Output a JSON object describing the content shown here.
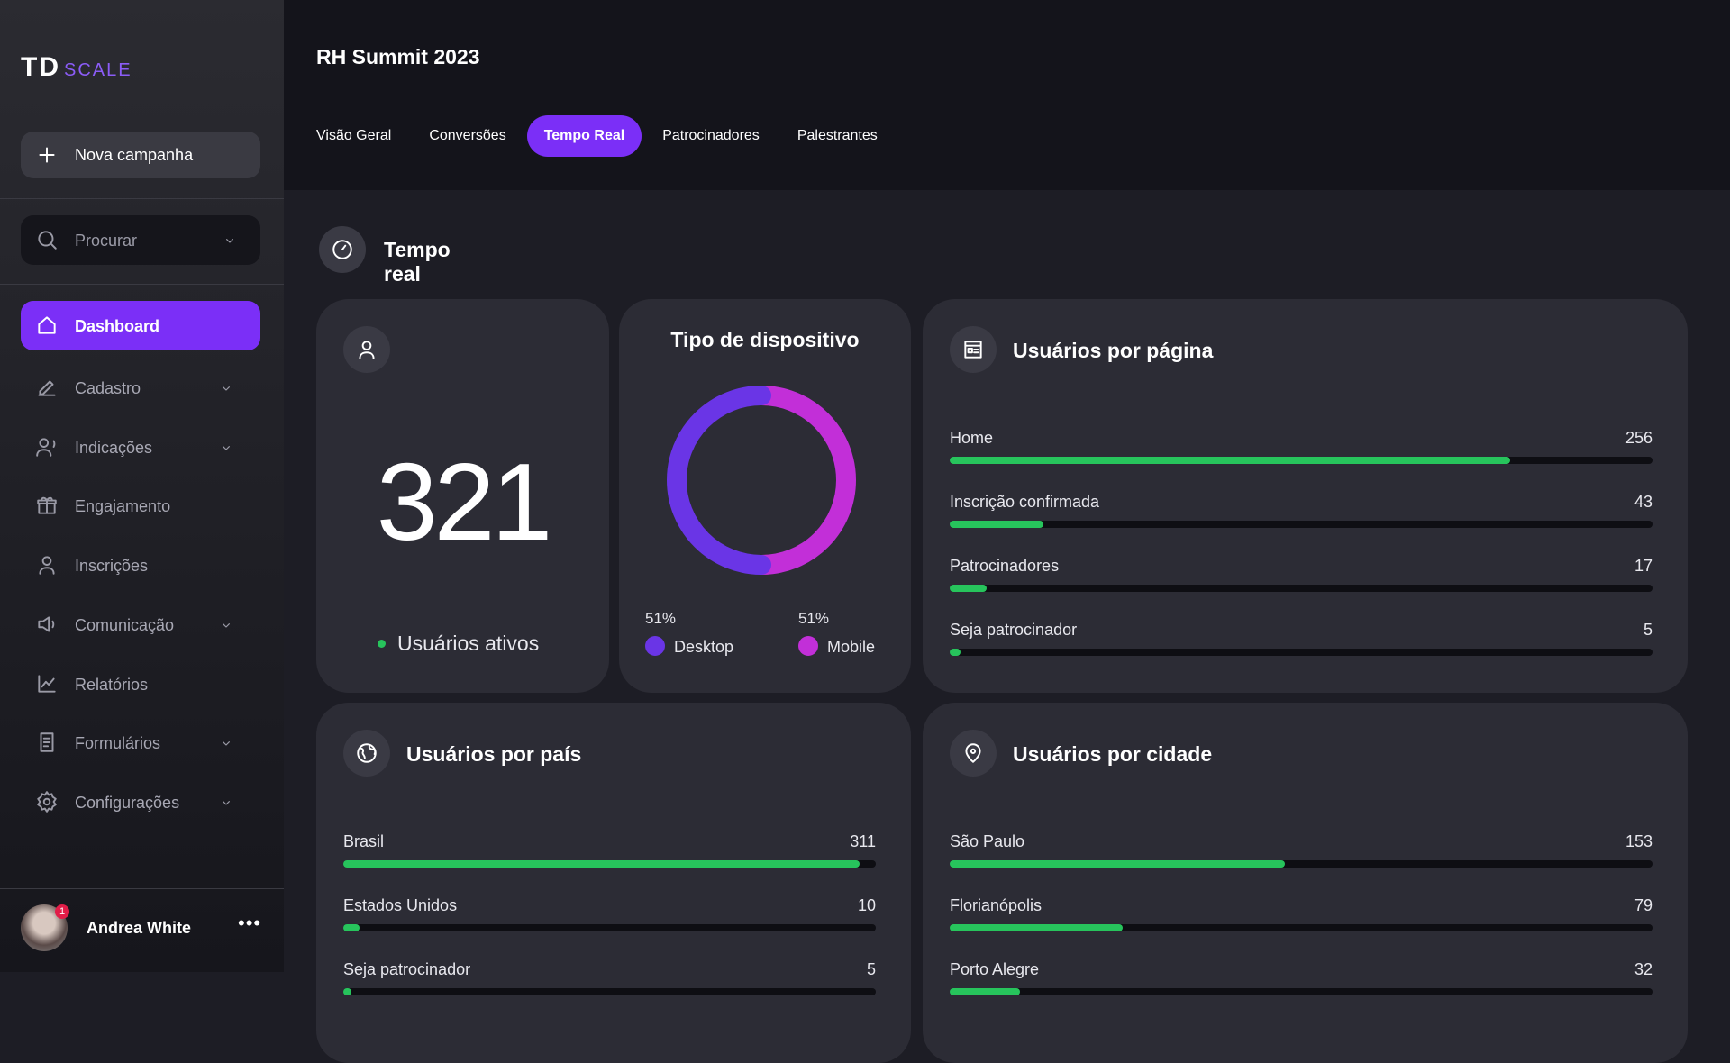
{
  "sidebar": {
    "logo": {
      "main": "TD",
      "sub": "SCALE"
    },
    "new_campaign": "Nova campanha",
    "search": "Procurar",
    "menu": [
      {
        "label": "Dashboard",
        "active": true
      },
      {
        "label": "Cadastro",
        "chevron": true
      },
      {
        "label": "Indicações",
        "chevron": true
      },
      {
        "label": "Engajamento"
      },
      {
        "label": "Inscrições"
      },
      {
        "label": "Comunicação",
        "chevron": true
      },
      {
        "label": "Relatórios"
      },
      {
        "label": "Formulários",
        "chevron": true
      },
      {
        "label": "Configurações",
        "chevron": true
      }
    ],
    "user": {
      "name": "Andrea White",
      "notifications": 1
    }
  },
  "header": {
    "title": "RH Summit 2023",
    "tabs": [
      "Visão Geral",
      "Conversões",
      "Tempo Real",
      "Patrocinadores",
      "Palestrantes"
    ],
    "active_tab": 2
  },
  "section": {
    "title": "Tempo real"
  },
  "active_users": {
    "value": 321,
    "label": "Usuários ativos"
  },
  "device": {
    "title": "Tipo de dispositivo",
    "segments": [
      {
        "name": "Desktop",
        "value": 51,
        "value_label": "51%",
        "color": "#6a35e6"
      },
      {
        "name": "Mobile",
        "value": 51,
        "value_label": "51%",
        "color": "#c22fd8"
      }
    ]
  },
  "pages": {
    "title": "Usuários por página",
    "rows": [
      {
        "label": "Home",
        "value": 256
      },
      {
        "label": "Inscrição confirmada",
        "value": 43
      },
      {
        "label": "Patrocinadores",
        "value": 17
      },
      {
        "label": "Seja patrocinador",
        "value": 5
      }
    ]
  },
  "countries": {
    "title": "Usuários por país",
    "rows": [
      {
        "label": "Brasil",
        "value": 311
      },
      {
        "label": "Estados Unidos",
        "value": 10
      },
      {
        "label": "Seja patrocinador",
        "value": 5
      }
    ]
  },
  "cities": {
    "title": "Usuários por cidade",
    "rows": [
      {
        "label": "São Paulo",
        "value": 153
      },
      {
        "label": "Florianópolis",
        "value": 79
      },
      {
        "label": "Porto Alegre",
        "value": 32
      }
    ]
  }
}
